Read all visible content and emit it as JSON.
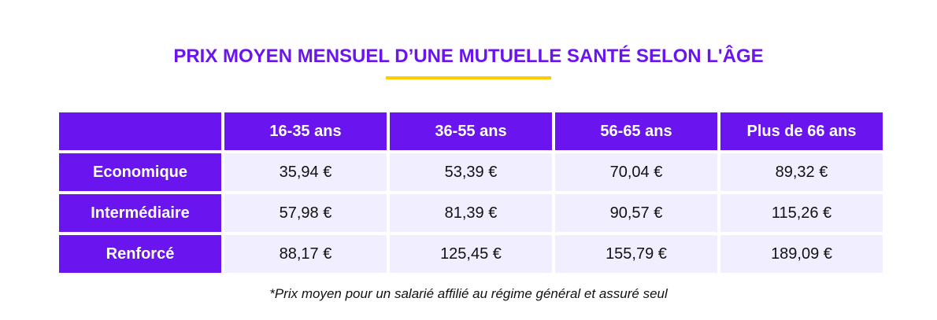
{
  "title": "PRIX MOYEN MENSUEL D’UNE MUTUELLE SANTÉ SELON L'ÂGE",
  "table": {
    "columns": [
      "16-35 ans",
      "36-55 ans",
      "56-65 ans",
      "Plus de 66 ans"
    ],
    "rows": [
      [
        "Economique",
        "35,94 €",
        "53,39 €",
        "70,04 €",
        "89,32 €"
      ],
      [
        "Intermédiaire",
        "57,98 €",
        "81,39 €",
        "90,57 €",
        "115,26 €"
      ],
      [
        "Renforcé",
        "88,17 €",
        "125,45 €",
        "155,79 €",
        "189,09 €"
      ]
    ]
  },
  "note": "*Prix moyen pour un salarié affilié au régime général et assuré seul"
}
